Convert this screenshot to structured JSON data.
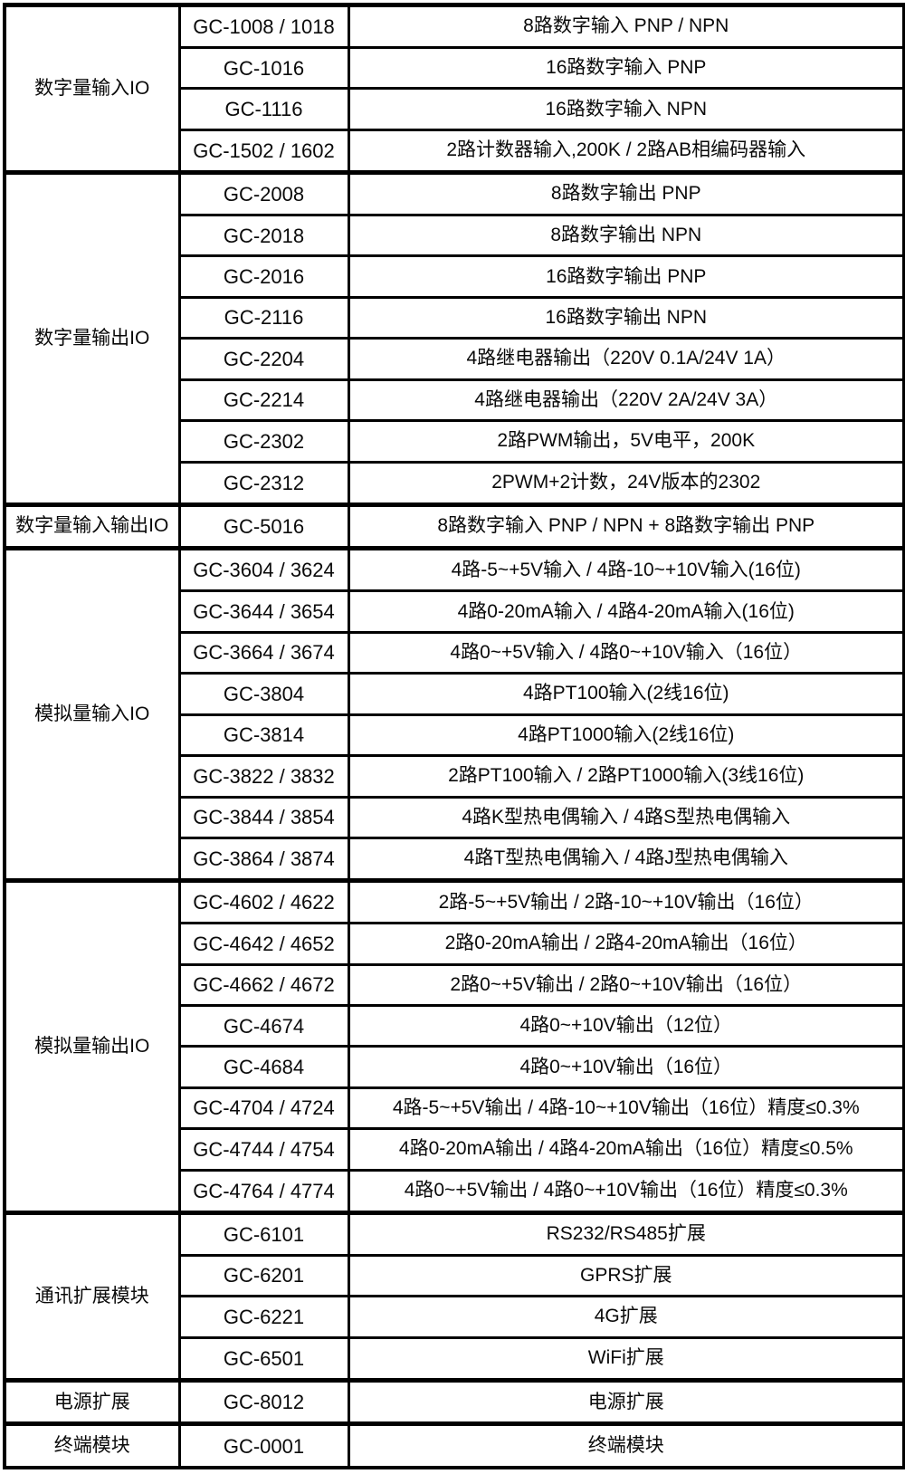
{
  "table": {
    "columns": [
      "category",
      "model",
      "description"
    ],
    "border_color": "#000000",
    "text_color": "#0a0a0a",
    "background_color": "#ffffff",
    "sections": [
      {
        "category": "数字量输入IO",
        "rows": [
          {
            "model": "GC-1008 / 1018",
            "desc": "8路数字输入 PNP / NPN"
          },
          {
            "model": "GC-1016",
            "desc": "16路数字输入 PNP"
          },
          {
            "model": "GC-1116",
            "desc": "16路数字输入 NPN"
          },
          {
            "model": "GC-1502 / 1602",
            "desc": "2路计数器输入,200K / 2路AB相编码器输入"
          }
        ]
      },
      {
        "category": "数字量输出IO",
        "rows": [
          {
            "model": "GC-2008",
            "desc": "8路数字输出 PNP"
          },
          {
            "model": "GC-2018",
            "desc": "8路数字输出 NPN"
          },
          {
            "model": "GC-2016",
            "desc": "16路数字输出 PNP"
          },
          {
            "model": "GC-2116",
            "desc": "16路数字输出 NPN"
          },
          {
            "model": "GC-2204",
            "desc": "4路继电器输出（220V 0.1A/24V 1A）"
          },
          {
            "model": "GC-2214",
            "desc": "4路继电器输出（220V 2A/24V 3A）"
          },
          {
            "model": "GC-2302",
            "desc": "2路PWM输出，5V电平，200K"
          },
          {
            "model": "GC-2312",
            "desc": "2PWM+2计数，24V版本的2302"
          }
        ]
      },
      {
        "category": "数字量输入输出IO",
        "rows": [
          {
            "model": "GC-5016",
            "desc": "8路数字输入 PNP / NPN + 8路数字输出 PNP"
          }
        ]
      },
      {
        "category": "模拟量输入IO",
        "rows": [
          {
            "model": "GC-3604 / 3624",
            "desc": "4路-5~+5V输入 / 4路-10~+10V输入(16位)"
          },
          {
            "model": "GC-3644 / 3654",
            "desc": "4路0-20mA输入 / 4路4-20mA输入(16位)"
          },
          {
            "model": "GC-3664 / 3674",
            "desc": "4路0~+5V输入 / 4路0~+10V输入（16位）"
          },
          {
            "model": "GC-3804",
            "desc": "4路PT100输入(2线16位)"
          },
          {
            "model": "GC-3814",
            "desc": "4路PT1000输入(2线16位)"
          },
          {
            "model": "GC-3822 / 3832",
            "desc": "2路PT100输入 / 2路PT1000输入(3线16位)"
          },
          {
            "model": "GC-3844 / 3854",
            "desc": "4路K型热电偶输入 / 4路S型热电偶输入"
          },
          {
            "model": "GC-3864 / 3874",
            "desc": "4路T型热电偶输入 / 4路J型热电偶输入"
          }
        ]
      },
      {
        "category": "模拟量输出IO",
        "rows": [
          {
            "model": "GC-4602 / 4622",
            "desc": "2路-5~+5V输出 / 2路-10~+10V输出（16位）"
          },
          {
            "model": "GC-4642 / 4652",
            "desc": "2路0-20mA输出 / 2路4-20mA输出（16位）"
          },
          {
            "model": "GC-4662 / 4672",
            "desc": "2路0~+5V输出 / 2路0~+10V输出（16位）"
          },
          {
            "model": "GC-4674",
            "desc": "4路0~+10V输出（12位）"
          },
          {
            "model": "GC-4684",
            "desc": "4路0~+10V输出（16位）"
          },
          {
            "model": "GC-4704 / 4724",
            "desc": "4路-5~+5V输出 / 4路-10~+10V输出（16位）精度≤0.3%"
          },
          {
            "model": "GC-4744 / 4754",
            "desc": "4路0-20mA输出 / 4路4-20mA输出（16位）精度≤0.5%"
          },
          {
            "model": "GC-4764 / 4774",
            "desc": "4路0~+5V输出 / 4路0~+10V输出（16位）精度≤0.3%"
          }
        ]
      },
      {
        "category": "通讯扩展模块",
        "rows": [
          {
            "model": "GC-6101",
            "desc": "RS232/RS485扩展"
          },
          {
            "model": "GC-6201",
            "desc": "GPRS扩展"
          },
          {
            "model": "GC-6221",
            "desc": "4G扩展"
          },
          {
            "model": "GC-6501",
            "desc": "WiFi扩展"
          }
        ]
      },
      {
        "category": "电源扩展",
        "rows": [
          {
            "model": "GC-8012",
            "desc": "电源扩展"
          }
        ]
      },
      {
        "category": "终端模块",
        "rows": [
          {
            "model": "GC-0001",
            "desc": "终端模块"
          }
        ]
      }
    ]
  }
}
